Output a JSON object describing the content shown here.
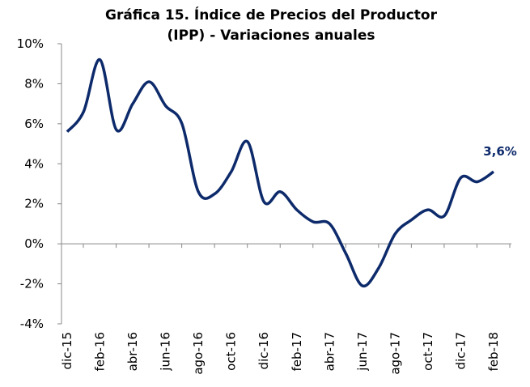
{
  "chart_data": {
    "type": "line",
    "title": [
      "Gráfica 15. Índice de Precios del Productor",
      "(IPP) - Variaciones anuales"
    ],
    "categories": [
      "dic-15",
      null,
      "feb-16",
      null,
      "abr-16",
      null,
      "jun-16",
      null,
      "ago-16",
      null,
      "oct-16",
      null,
      "dic-16",
      null,
      "feb-17",
      null,
      "abr-17",
      null,
      "jun-17",
      null,
      "ago-17",
      null,
      "oct-17",
      null,
      "dic-17",
      null,
      "feb-18"
    ],
    "series": [
      {
        "name": "IPP",
        "color": "#0d2a6b",
        "values": [
          5.6,
          6.6,
          9.2,
          5.7,
          7.0,
          8.1,
          6.9,
          6.0,
          2.6,
          2.5,
          3.6,
          5.1,
          2.1,
          2.6,
          1.7,
          1.1,
          1.0,
          -0.5,
          -2.1,
          -1.2,
          0.5,
          1.2,
          1.7,
          1.4,
          3.3,
          3.1,
          3.6
        ],
        "value_labels": [
          null,
          null,
          null,
          null,
          null,
          null,
          null,
          null,
          null,
          null,
          null,
          null,
          null,
          null,
          null,
          null,
          null,
          null,
          null,
          null,
          null,
          null,
          null,
          null,
          null,
          null,
          "3,6%"
        ]
      }
    ],
    "ylim": [
      -4,
      10
    ],
    "yticks": [
      {
        "value": -4,
        "label": "-4%"
      },
      {
        "value": -2,
        "label": "-2%"
      },
      {
        "value": 0,
        "label": "0%"
      },
      {
        "value": 2,
        "label": "2%"
      },
      {
        "value": 4,
        "label": "4%"
      },
      {
        "value": 6,
        "label": "6%"
      },
      {
        "value": 8,
        "label": "8%"
      },
      {
        "value": 10,
        "label": "10%"
      }
    ],
    "grid": false
  }
}
